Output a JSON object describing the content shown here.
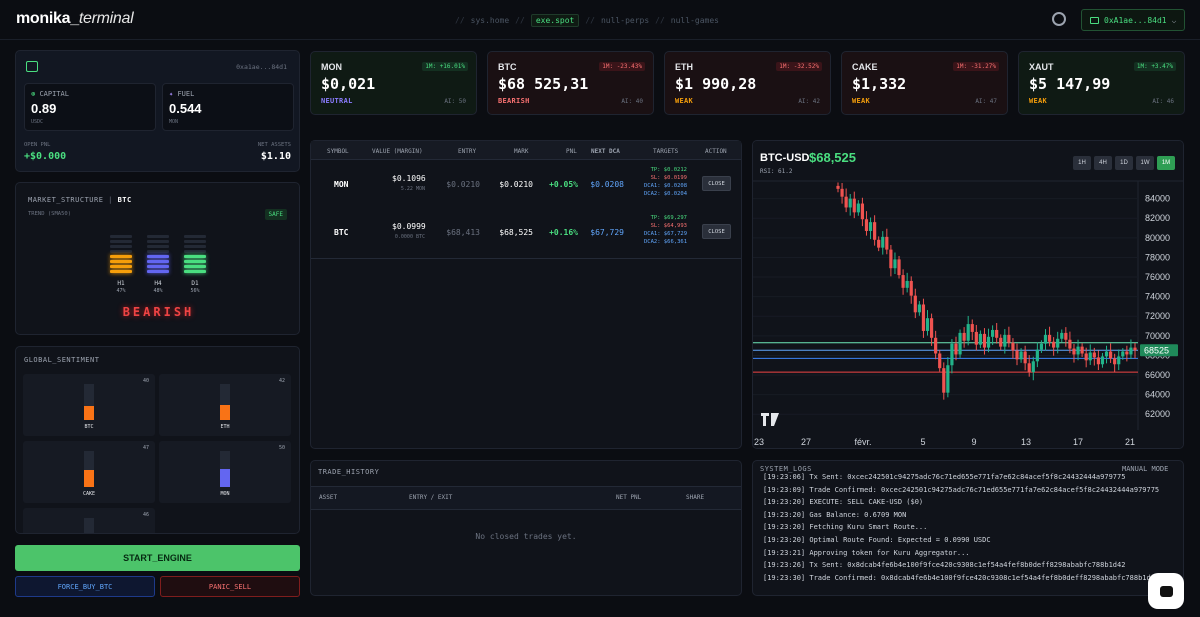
{
  "header": {
    "logo_main": "monika_",
    "logo_italic": "terminal",
    "nav": [
      "sys.home",
      "exe.spot",
      "null-perps",
      "null-games"
    ],
    "nav_sep": "//",
    "wallet": "0xA1ae...84d1",
    "wallet_chevron": "⌵"
  },
  "account": {
    "address": "0xa1ae...84d1",
    "capital_label": "CAPITAL",
    "capital_value": "0.89",
    "capital_unit": "USDC",
    "fuel_label": "FUEL",
    "fuel_value": "0.544",
    "fuel_unit": "MON",
    "open_pnl_label": "OPEN PNL",
    "open_pnl_value": "+$0.000",
    "net_assets_label": "NET ASSETS",
    "net_assets_value": "$1.10"
  },
  "tickers": [
    {
      "symbol": "MON",
      "change": "1M: +16.01%",
      "price": "$0,021",
      "signal": "NEUTRAL",
      "ai": "AI: 50",
      "signal_color": "#8b7cff",
      "chg_color": "#4ade80",
      "bg": "#0f1a14"
    },
    {
      "symbol": "BTC",
      "change": "1M: -23.43%",
      "price": "$68 525,31",
      "signal": "BEARISH",
      "ai": "AI: 40",
      "signal_color": "#f87171",
      "chg_color": "#f87171",
      "bg": "#1a1013"
    },
    {
      "symbol": "ETH",
      "change": "1M: -32.52%",
      "price": "$1 990,28",
      "signal": "WEAK",
      "ai": "AI: 42",
      "signal_color": "#f59e0b",
      "chg_color": "#f87171",
      "bg": "#1a1013"
    },
    {
      "symbol": "CAKE",
      "change": "1M: -31.27%",
      "price": "$1,332",
      "signal": "WEAK",
      "ai": "AI: 47",
      "signal_color": "#f59e0b",
      "chg_color": "#f87171",
      "bg": "#1a1013"
    },
    {
      "symbol": "XAUT",
      "change": "1M: +3.47%",
      "price": "$5 147,99",
      "signal": "WEAK",
      "ai": "AI: 46",
      "signal_color": "#f59e0b",
      "chg_color": "#4ade80",
      "bg": "#0f1a14"
    }
  ],
  "market": {
    "title": "MARKET_STRUCTURE",
    "sep": "|",
    "asset": "BTC",
    "trend": "TREND (SMA50)",
    "safe": "SAFE",
    "bars": [
      {
        "tf": "H1",
        "pct": "47%",
        "color": "#f59e0b"
      },
      {
        "tf": "H4",
        "pct": "48%",
        "color": "#6366f1"
      },
      {
        "tf": "D1",
        "pct": "56%",
        "color": "#4ade80"
      }
    ],
    "verdict": "BEARISH"
  },
  "sentiment": {
    "title": "GLOBAL_SENTIMENT",
    "items": [
      {
        "name": "BTC",
        "score": "40",
        "level": 0.4,
        "color": "#f97316"
      },
      {
        "name": "ETH",
        "score": "42",
        "level": 0.42,
        "color": "#f97316"
      },
      {
        "name": "CAKE",
        "score": "47",
        "level": 0.47,
        "color": "#f97316"
      },
      {
        "name": "MON",
        "score": "50",
        "level": 0.5,
        "color": "#6366f1"
      },
      {
        "name": "",
        "score": "46",
        "level": 0.46,
        "color": "#f97316"
      }
    ]
  },
  "buttons": {
    "start": "START_ENGINE",
    "force_buy": "FORCE_BUY_BTC",
    "panic": "PANIC_SELL"
  },
  "positions": {
    "headers": [
      "SYMBOL",
      "VALUE (MARGIN)",
      "ENTRY",
      "MARK",
      "PNL",
      "NEXT DCA",
      "TARGETS",
      "ACTION"
    ],
    "rows": [
      {
        "symbol": "MON",
        "value": "$0.1096",
        "margin": "5.22 MON",
        "entry": "$0.0210",
        "mark": "$0.0210",
        "pnl": "+0.05%",
        "next_dca": "$0.0208",
        "tp": "TP: $0.0212",
        "sl": "SL: $0.0199",
        "dca1": "DCA1: $0.0208",
        "dca2": "DCA2: $0.0204",
        "action": "CLOSE"
      },
      {
        "symbol": "BTC",
        "value": "$0.0999",
        "margin": "0.0000 BTC",
        "entry": "$68,413",
        "mark": "$68,525",
        "pnl": "+0.16%",
        "next_dca": "$67,729",
        "tp": "TP: $69,297",
        "sl": "SL: $64,993",
        "dca1": "DCA1: $67,729",
        "dca2": "DCA2: $66,361",
        "action": "CLOSE"
      }
    ]
  },
  "history": {
    "title": "TRADE_HISTORY",
    "headers": [
      "ASSET",
      "ENTRY / EXIT",
      "NET PNL",
      "SHARE"
    ],
    "empty": "No closed trades yet."
  },
  "logs": {
    "title": "SYSTEM_LOGS",
    "mode": "MANUAL MODE",
    "lines": [
      "[19:23:06] Tx Sent: 0xcec242501c94275adc76c71ed655e771fa7e62c84acef5f8c24432444a979775",
      "[19:23:09] Trade Confirmed: 0xcec242501c94275adc76c71ed655e771fa7e62c84acef5f8c24432444a979775",
      "[19:23:20] EXECUTE: SELL CAKE-USD ($0)",
      "[19:23:20] Gas Balance: 0.6709 MON",
      "[19:23:20] Fetching Kuru Smart Route...",
      "[19:23:20] Optimal Route Found: Expected = 0.0990 USDC",
      "[19:23:21] Approving token for Kuru Aggregator...",
      "[19:23:26] Tx Sent: 0x8dcab4fe6b4e100f9fce420c9308c1ef54a4fef8b0deff8298ababfc788b1d42",
      "[19:23:30] Trade Confirmed: 0x8dcab4fe6b4e100f9fce420c9308c1ef54a4fef8b0deff8298ababfc788b1d42"
    ]
  },
  "chart_data": {
    "type": "candlestick",
    "pair": "BTC-USD",
    "last": "$68,525",
    "rsi": "RSI: 61.2",
    "timeframes": [
      "1H",
      "4H",
      "1D",
      "1W",
      "1M"
    ],
    "active_tf": "1M",
    "y_ticks": [
      84000,
      82000,
      80000,
      78000,
      76000,
      74000,
      72000,
      70000,
      68000,
      66000,
      64000,
      62000
    ],
    "x_ticks": [
      "23",
      "27",
      "févr.",
      "5",
      "9",
      "13",
      "17",
      "21"
    ],
    "last_label": "68525",
    "ylim": [
      60800,
      85800
    ],
    "close": [
      85000,
      84200,
      83100,
      84000,
      82600,
      83500,
      81900,
      80700,
      81600,
      79800,
      79000,
      80100,
      78800,
      76900,
      77800,
      76200,
      74900,
      75600,
      74100,
      72400,
      73200,
      70500,
      71800,
      69800,
      68200,
      66700,
      64200,
      67000,
      69200,
      68100,
      70300,
      69500,
      71200,
      70400,
      69100,
      70200,
      68800,
      69900,
      70600,
      69800,
      68900,
      70100,
      69300,
      68500,
      67600,
      68400,
      67200,
      66300,
      67400,
      68600,
      69200,
      70100,
      69400,
      68800,
      69700,
      70300,
      69600,
      68700,
      68100,
      68900,
      68200,
      67500,
      68300,
      67800,
      67100,
      67900,
      68400,
      67700,
      67100,
      67900,
      68400,
      68100,
      68800,
      68525
    ],
    "levels": [
      {
        "value": 69300,
        "color": "#6ee7b7"
      },
      {
        "value": 68525,
        "color": "#60a5fa"
      },
      {
        "value": 67700,
        "color": "#3b82f6"
      },
      {
        "value": 66300,
        "color": "#ef4444"
      }
    ]
  }
}
